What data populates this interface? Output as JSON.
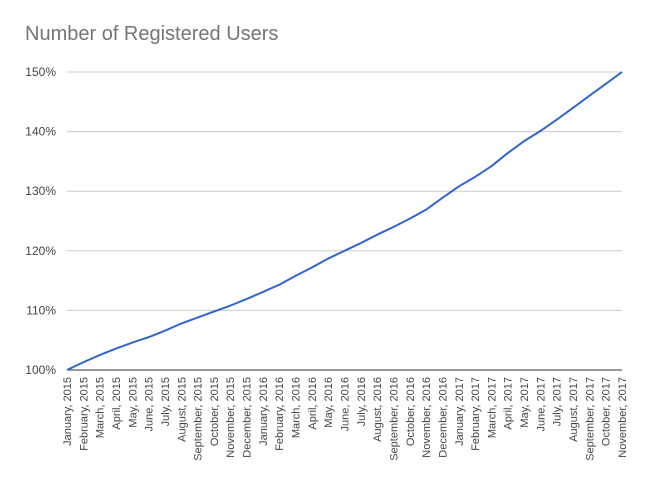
{
  "chart_data": {
    "type": "line",
    "title": "Number of Registered Users",
    "xlabel": "",
    "ylabel": "",
    "ylim": [
      100,
      150
    ],
    "y_ticks": [
      "100%",
      "110%",
      "120%",
      "130%",
      "140%",
      "150%"
    ],
    "y_tick_values": [
      100,
      110,
      120,
      130,
      140,
      150
    ],
    "grid": true,
    "legend": "none",
    "line_color": "#3366cc",
    "categories": [
      "January, 2015",
      "February, 2015",
      "March, 2015",
      "April, 2015",
      "May, 2015",
      "June, 2015",
      "July, 2015",
      "August, 2015",
      "September, 2015",
      "October, 2015",
      "November, 2015",
      "December, 2015",
      "January, 2016",
      "February, 2016",
      "March, 2016",
      "April, 2016",
      "May, 2016",
      "June, 2016",
      "July, 2016",
      "August, 2016",
      "September, 2016",
      "October, 2016",
      "November, 2016",
      "December, 2016",
      "January, 2017",
      "February, 2017",
      "March, 2017",
      "April, 2017",
      "May, 2017",
      "June, 2017",
      "July, 2017",
      "August, 2017",
      "September, 2017",
      "October, 2017",
      "November, 2017"
    ],
    "series": [
      {
        "values": [
          100.0,
          101.3,
          102.5,
          103.6,
          104.6,
          105.5,
          106.6,
          107.8,
          108.8,
          109.8,
          110.8,
          111.9,
          113.1,
          114.3,
          115.8,
          117.2,
          118.7,
          120.0,
          121.3,
          122.7,
          124.0,
          125.4,
          126.9,
          128.9,
          130.8,
          132.4,
          134.2,
          136.4,
          138.4,
          140.1,
          142.0,
          144.0,
          146.0,
          148.0,
          150.0
        ]
      }
    ]
  }
}
